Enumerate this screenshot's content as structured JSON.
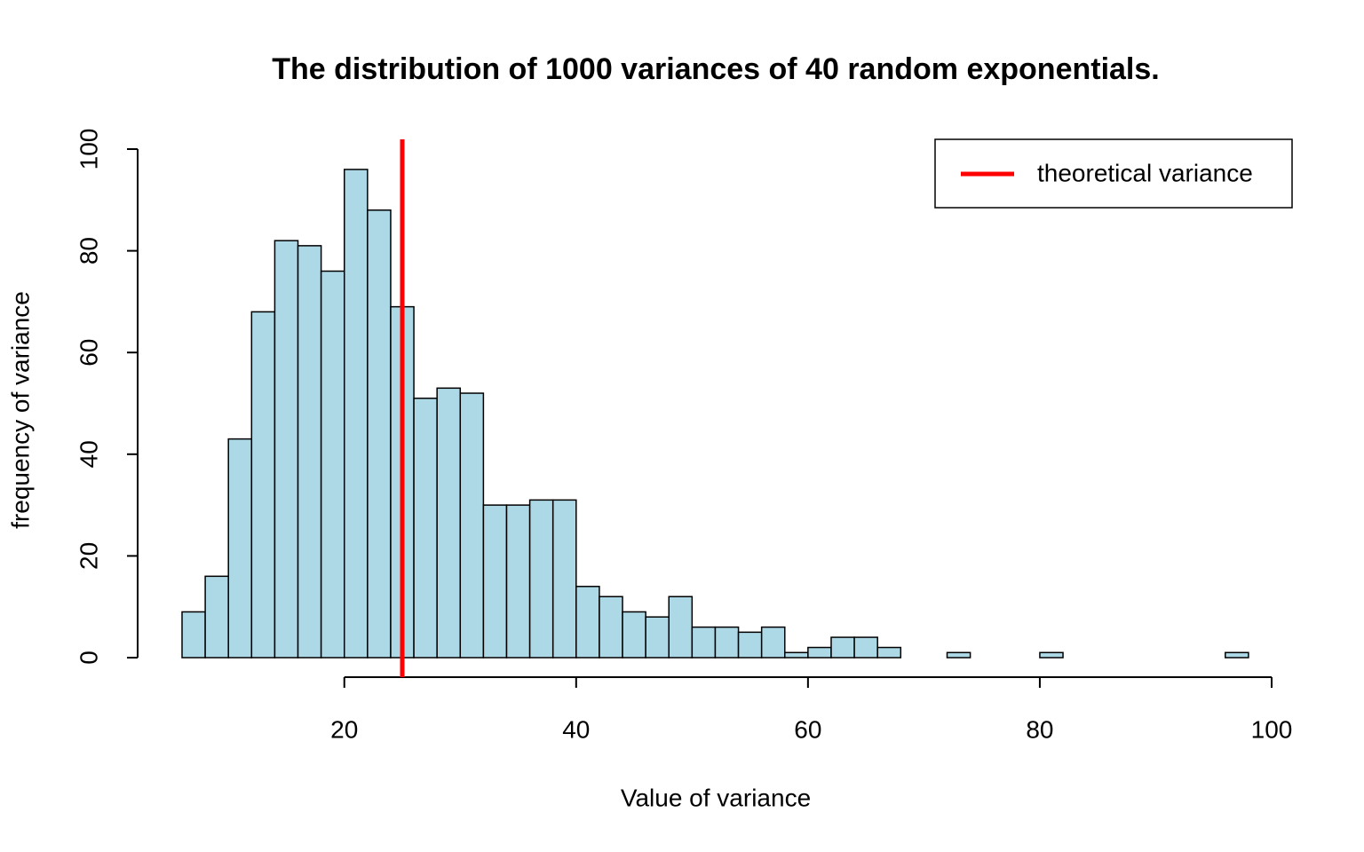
{
  "chart_data": {
    "type": "histogram",
    "title": "The distribution of 1000 variances of 40 random exponentials.",
    "x_label": "Value of variance",
    "y_label": "frequency of variance",
    "bins": [
      6,
      8,
      10,
      12,
      14,
      16,
      18,
      20,
      22,
      24,
      26,
      28,
      30,
      32,
      34,
      36,
      38,
      40,
      42,
      44,
      46,
      48,
      50,
      52,
      54,
      56,
      58,
      60,
      62,
      64,
      66,
      68,
      70,
      72,
      74,
      76,
      78,
      80,
      82,
      84,
      86,
      88,
      90,
      92,
      94,
      96,
      98
    ],
    "values": [
      9,
      16,
      43,
      68,
      82,
      81,
      76,
      96,
      88,
      69,
      51,
      53,
      52,
      30,
      30,
      31,
      31,
      14,
      12,
      9,
      8,
      12,
      6,
      6,
      5,
      6,
      1,
      2,
      4,
      4,
      2,
      0,
      0,
      1,
      0,
      0,
      0,
      1,
      0,
      0,
      0,
      0,
      0,
      0,
      0,
      1
    ],
    "color": "#add8e6",
    "xlim": [
      6,
      100
    ],
    "xticks": [
      20,
      40,
      60,
      80,
      100
    ],
    "ylim": [
      0,
      100
    ],
    "yticks": [
      0,
      20,
      40,
      60,
      80,
      100
    ],
    "reference_line": {
      "name": "theoretical variance",
      "value": 25,
      "color": "#ff0000"
    },
    "legend": "top-right"
  }
}
